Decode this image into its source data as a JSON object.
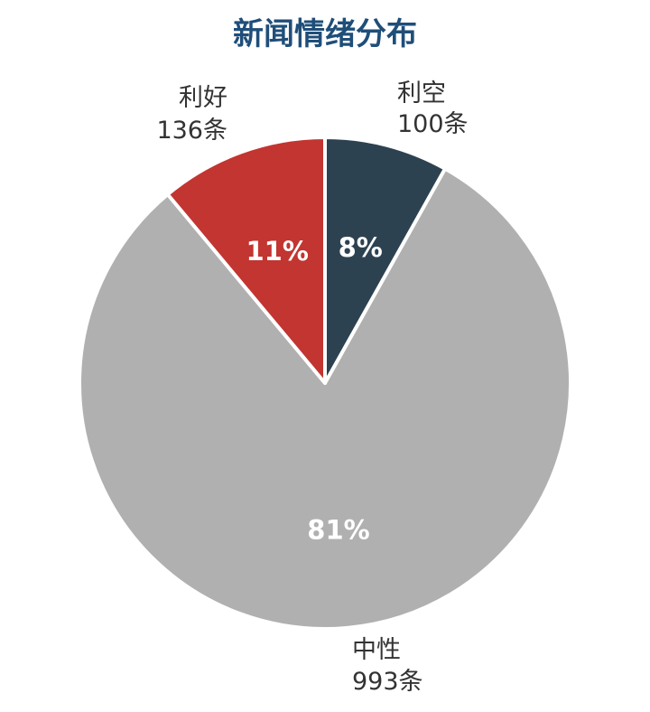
{
  "chart_data": {
    "type": "pie",
    "title": "新闻情绪分布",
    "slices": [
      {
        "name": "利空",
        "count_label": "100条",
        "value": 100,
        "percent_label": "8%",
        "color": "#2d4251"
      },
      {
        "name": "中性",
        "count_label": "993条",
        "value": 993,
        "percent_label": "81%",
        "color": "#b0b0b0"
      },
      {
        "name": "利好",
        "count_label": "136条",
        "value": 136,
        "percent_label": "11%",
        "color": "#c23531"
      }
    ]
  }
}
